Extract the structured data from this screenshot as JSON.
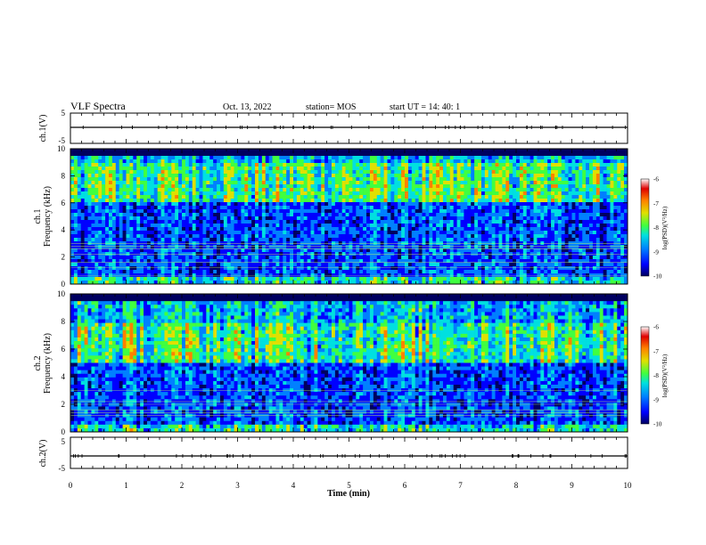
{
  "header": {
    "title": "VLF Spectra",
    "date": "Oct. 13, 2022",
    "station": "station= MOS",
    "start": "start  UT =   14: 40: 1"
  },
  "colors": {
    "spectrogram_scale": [
      "#000060",
      "#0000ff",
      "#0080ff",
      "#00e0e0",
      "#40ff40",
      "#e0e000",
      "#ff8000",
      "#e00000",
      "#ffffff"
    ]
  },
  "chart_data": [
    {
      "type": "line",
      "name": "ch1-waveform",
      "ylabel": "ch.1(V)",
      "ylim": [
        -5,
        5
      ],
      "yticks": [
        "5",
        "-5"
      ],
      "x": [
        0,
        10
      ],
      "y": [
        0,
        0
      ],
      "xlim": [
        0,
        10
      ]
    },
    {
      "type": "heatmap",
      "name": "ch1-spectrogram",
      "ylabel": "ch.1\nFrequency (kHz)",
      "ylim": [
        0,
        10
      ],
      "yticks": [
        "0",
        "2",
        "4",
        "6",
        "8",
        "10"
      ],
      "xlim": [
        0,
        10
      ],
      "colorbar": {
        "label": "log(PSD)(V²/Hz)",
        "range": [
          -10,
          -6
        ],
        "ticks": [
          "-6",
          "-7",
          "-8",
          "-9",
          "-10"
        ]
      },
      "intense_band_khz": [
        6,
        9
      ],
      "horizontal_lines_khz": [
        0.6,
        1.2,
        1.6,
        2.2,
        2.6,
        2.8,
        3.0
      ]
    },
    {
      "type": "heatmap",
      "name": "ch2-spectrogram",
      "ylabel": "ch.2\nFrequency (kHz)",
      "ylim": [
        0,
        10
      ],
      "yticks": [
        "0",
        "2",
        "4",
        "6",
        "8",
        "10"
      ],
      "xlim": [
        0,
        10
      ],
      "colorbar": {
        "label": "log(PSD)(V²/Hz)",
        "range": [
          -10,
          -6
        ],
        "ticks": [
          "-6",
          "-7",
          "-8",
          "-9",
          "-10"
        ]
      },
      "intense_band_khz": [
        5,
        8
      ],
      "horizontal_lines_khz": [
        1.2,
        1.4,
        1.6,
        2.0,
        2.2,
        3.0
      ]
    },
    {
      "type": "line",
      "name": "ch2-waveform",
      "ylabel": "ch.2(V)",
      "ylim": [
        -5,
        5
      ],
      "yticks": [
        "5",
        "-5"
      ],
      "x": [
        0,
        10
      ],
      "y": [
        0,
        0
      ],
      "xlim": [
        0,
        10
      ],
      "xlabel": "Time  (min)",
      "xticks": [
        "0",
        "1",
        "2",
        "3",
        "4",
        "5",
        "6",
        "7",
        "8",
        "9",
        "10"
      ]
    }
  ]
}
